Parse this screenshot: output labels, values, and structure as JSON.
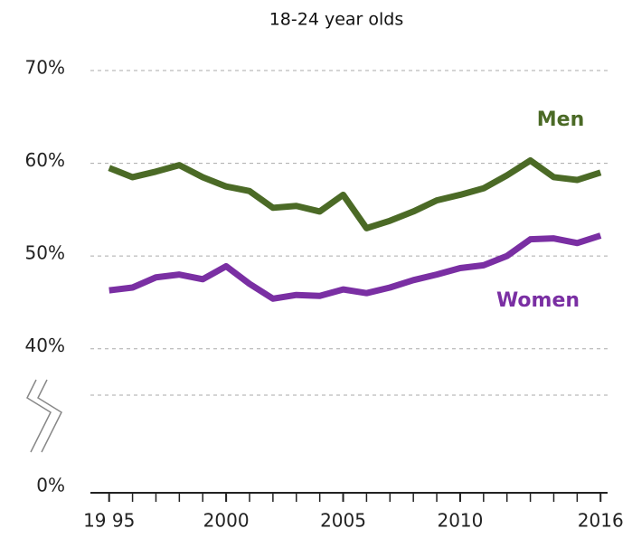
{
  "chart_data": {
    "type": "line",
    "title": "18-24 year olds",
    "x": [
      1995,
      1996,
      1997,
      1998,
      1999,
      2000,
      2001,
      2002,
      2003,
      2004,
      2005,
      2006,
      2007,
      2008,
      2009,
      2010,
      2011,
      2012,
      2013,
      2014,
      2015,
      2016
    ],
    "series": [
      {
        "name": "Men",
        "color": "#4b6a26",
        "values": [
          59.5,
          58.5,
          59.1,
          59.8,
          58.5,
          57.5,
          57.0,
          55.2,
          55.4,
          54.8,
          56.6,
          53.0,
          53.8,
          54.8,
          56.0,
          56.6,
          57.3,
          58.7,
          60.3,
          58.5,
          58.2,
          59.0
        ]
      },
      {
        "name": "Women",
        "color": "#7a2fa3",
        "values": [
          46.3,
          46.6,
          47.7,
          48.0,
          47.5,
          48.9,
          47.0,
          45.4,
          45.8,
          45.7,
          46.4,
          46.0,
          46.6,
          47.4,
          48.0,
          48.7,
          49.0,
          50.0,
          51.8,
          51.9,
          51.4,
          52.2
        ]
      }
    ],
    "xlim": [
      1994.2,
      2016.3
    ],
    "xticks": [
      {
        "value": 1995,
        "label": "19 95"
      },
      2000,
      2005,
      2010,
      2016
    ],
    "ylim": [
      0,
      70
    ],
    "yticks": [
      {
        "value": 0,
        "label": "0%"
      },
      {
        "value": 40,
        "label": "40%"
      },
      {
        "value": 50,
        "label": "50%"
      },
      {
        "value": 60,
        "label": "60%"
      },
      {
        "value": 70,
        "label": "70%"
      }
    ],
    "axis_break": 35,
    "grid": true
  }
}
